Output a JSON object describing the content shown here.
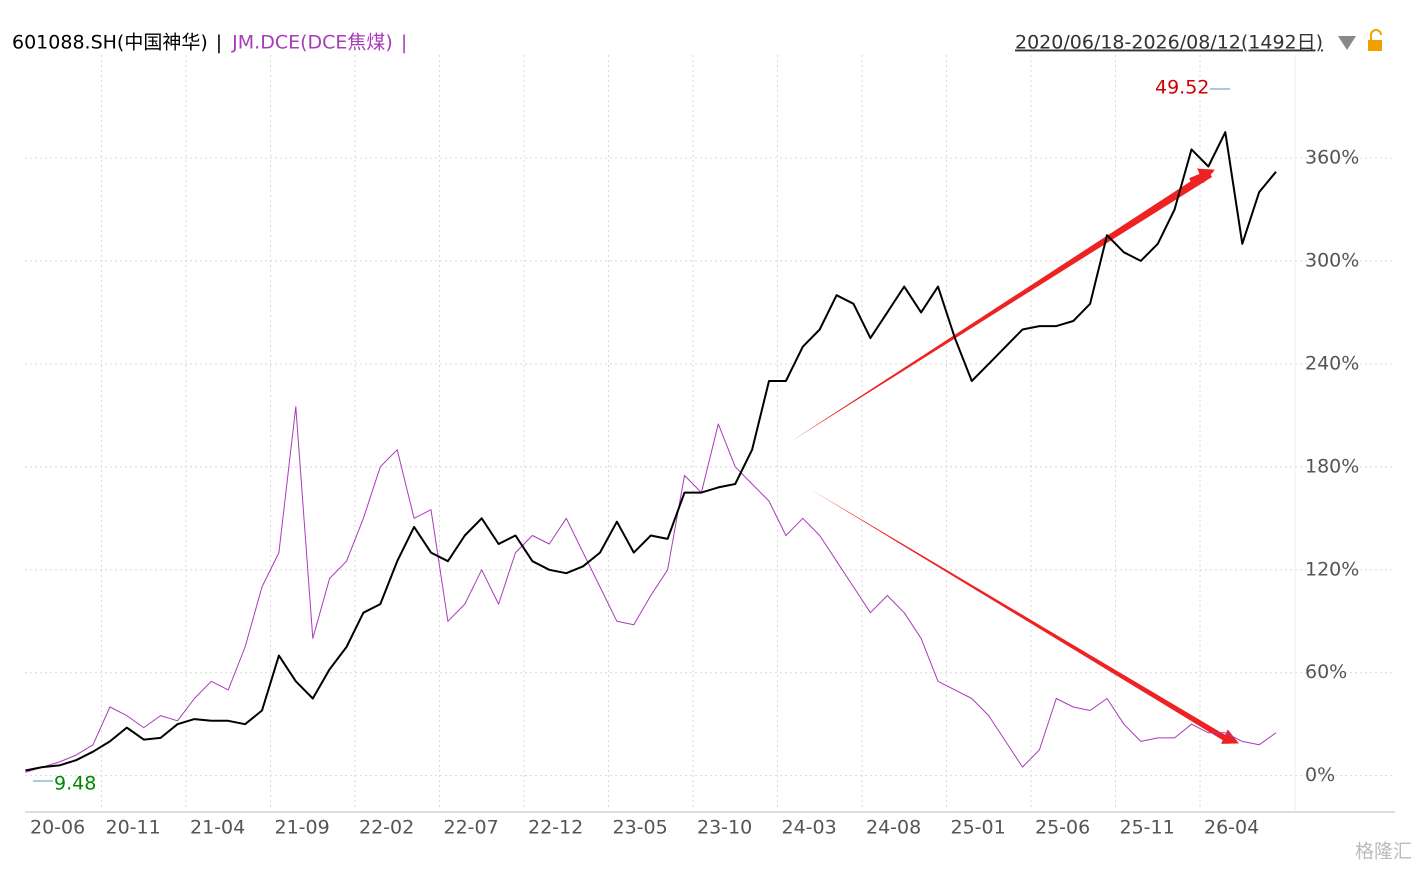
{
  "chart_data": {
    "type": "line",
    "legend_separator": "|",
    "date_range": "2020/06/18-2026/08/12(1492日)",
    "watermark": "格隆汇",
    "categories": [
      "20-06",
      null,
      null,
      null,
      null,
      "20-11",
      null,
      null,
      null,
      null,
      "21-04",
      null,
      null,
      null,
      null,
      "21-09",
      null,
      null,
      null,
      null,
      "22-02",
      null,
      null,
      null,
      null,
      "22-07",
      null,
      null,
      null,
      null,
      "22-12",
      null,
      null,
      null,
      null,
      "23-05",
      null,
      null,
      null,
      null,
      "23-10",
      null,
      null,
      null,
      null,
      "24-03",
      null,
      null,
      null,
      null,
      "24-08",
      null,
      null,
      null,
      null,
      "25-01",
      null,
      null,
      null,
      null,
      "25-06",
      null,
      null,
      null,
      null,
      "25-11",
      null,
      null,
      null,
      null,
      "26-04",
      null,
      null,
      null,
      null
    ],
    "series": [
      {
        "name": "601088.SH(中国神华)",
        "color": "#000000",
        "width": 2,
        "values": [
          3,
          5,
          6,
          9,
          14,
          20,
          28,
          21,
          22,
          30,
          33,
          32,
          32,
          30,
          38,
          70,
          55,
          45,
          62,
          75,
          95,
          100,
          125,
          145,
          130,
          125,
          140,
          150,
          135,
          140,
          125,
          120,
          118,
          122,
          130,
          148,
          130,
          140,
          138,
          165,
          165,
          168,
          170,
          190,
          230,
          230,
          250,
          260,
          280,
          275,
          255,
          270,
          285,
          270,
          285,
          255,
          230,
          240,
          250,
          260,
          262,
          262,
          265,
          275,
          315,
          305,
          300,
          310,
          330,
          365,
          355,
          375,
          310,
          340,
          352
        ]
      },
      {
        "name": "JM.DCE(DCE焦煤)",
        "color": "#a83cb8",
        "width": 1,
        "values": [
          2,
          5,
          8,
          12,
          18,
          40,
          35,
          28,
          35,
          32,
          45,
          55,
          50,
          75,
          110,
          130,
          215,
          80,
          115,
          125,
          150,
          180,
          190,
          150,
          155,
          90,
          100,
          120,
          100,
          130,
          140,
          135,
          150,
          130,
          110,
          90,
          88,
          105,
          120,
          175,
          165,
          205,
          180,
          170,
          160,
          140,
          150,
          140,
          125,
          110,
          95,
          105,
          95,
          80,
          55,
          50,
          45,
          35,
          20,
          5,
          15,
          45,
          40,
          38,
          45,
          30,
          20,
          22,
          22,
          30,
          25,
          25,
          20,
          18,
          25
        ]
      }
    ],
    "annotations": [
      {
        "text": "49.52",
        "color": "#cc0000"
      },
      {
        "text": "9.48",
        "color": "#008800"
      }
    ],
    "ylim": [
      -20,
      420
    ],
    "yticks": [
      {
        "value": 0,
        "label": "0%"
      },
      {
        "value": 60,
        "label": "60%"
      },
      {
        "value": 120,
        "label": "120%"
      },
      {
        "value": 180,
        "label": "180%"
      },
      {
        "value": 240,
        "label": "240%"
      },
      {
        "value": 300,
        "label": "300%"
      },
      {
        "value": 360,
        "label": "360%"
      }
    ],
    "grid": true
  }
}
